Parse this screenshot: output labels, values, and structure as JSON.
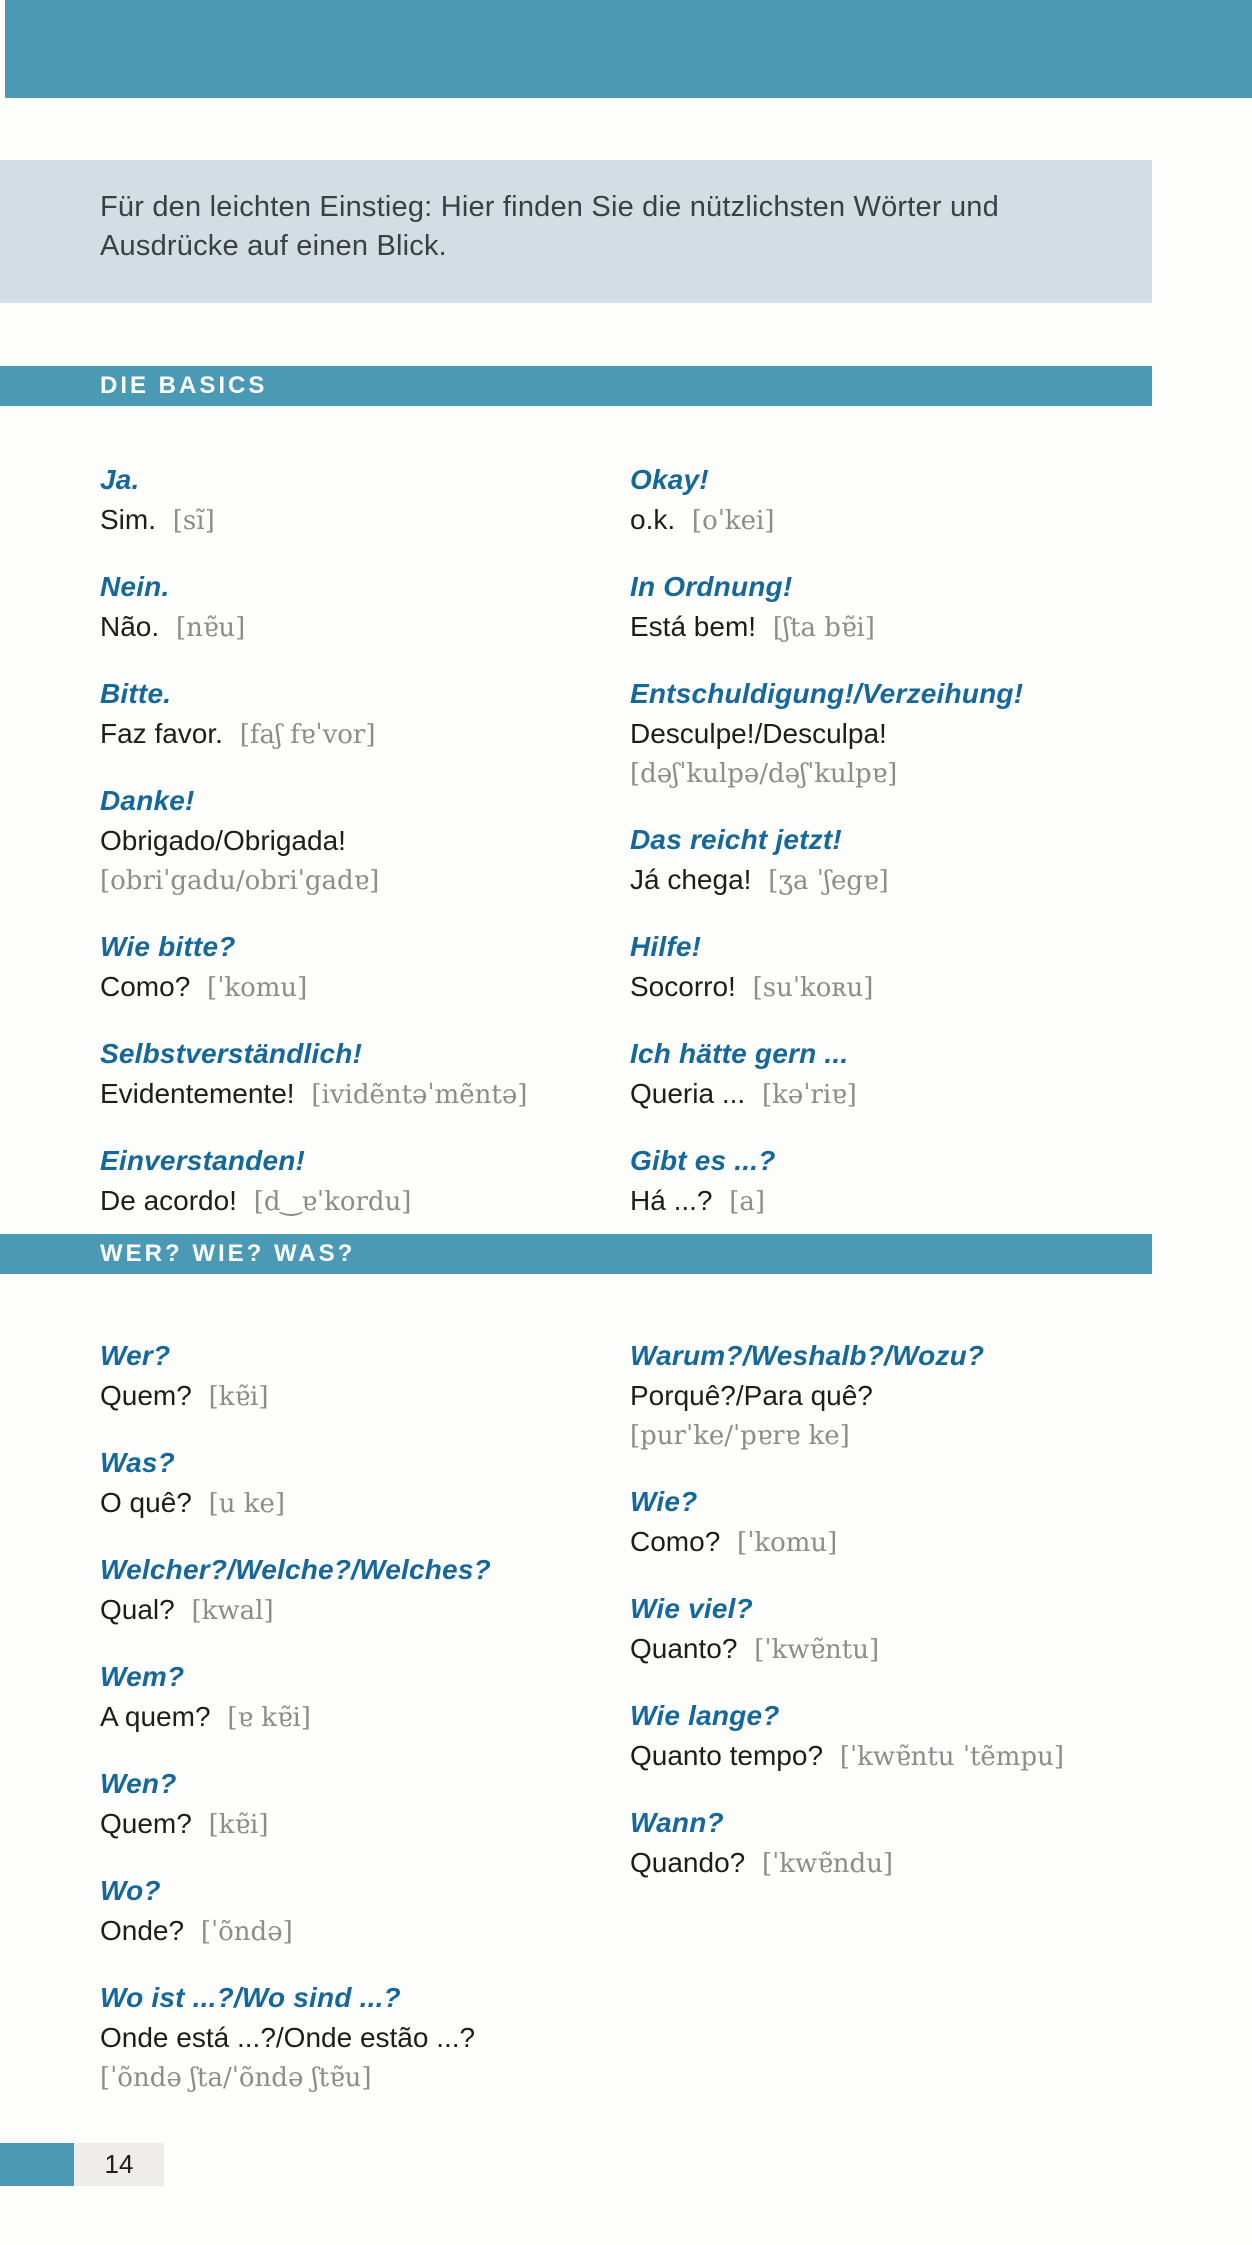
{
  "colors": {
    "teal": "#4A9AB5",
    "intro_bg": "#D3DEE4",
    "headword_blue": "#16689B",
    "ipa_gray": "#8C8C8C"
  },
  "intro": {
    "text": "Für den leichten Einstieg: Hier finden Sie die nützlichsten Wörter und Ausdrücke auf einen Blick."
  },
  "sections": [
    {
      "title": "DIE BASICS",
      "left": [
        {
          "de": "Ja.",
          "pt": "Sim.",
          "ipa": "[sĩ]",
          "ipa_break": false
        },
        {
          "de": "Nein.",
          "pt": "Não.",
          "ipa": "[nɐ̃u]",
          "ipa_break": false
        },
        {
          "de": "Bitte.",
          "pt": "Faz favor.",
          "ipa": "[faʃ fɐˈvor]",
          "ipa_break": false
        },
        {
          "de": "Danke!",
          "pt": "Obrigado/Obrigada!",
          "ipa": "[obriˈgadu/obriˈgadɐ]",
          "ipa_break": true
        },
        {
          "de": "Wie bitte?",
          "pt": "Como?",
          "ipa": "[ˈkomu]",
          "ipa_break": false
        },
        {
          "de": "Selbstverständlich!",
          "pt": "Evidentemente!",
          "ipa": "[ividẽntəˈmẽntə]",
          "ipa_break": false
        },
        {
          "de": "Einverstanden!",
          "pt": "De acordo!",
          "ipa": "[d‿ɐˈkordu]",
          "ipa_break": false
        }
      ],
      "right": [
        {
          "de": "Okay!",
          "pt": "o.k.",
          "ipa": "[oˈkei]",
          "ipa_break": false
        },
        {
          "de": "In Ordnung!",
          "pt": "Está bem!",
          "ipa": "[ʃta bɐ̃i]",
          "ipa_break": false
        },
        {
          "de": "Entschuldigung!/Verzeihung!",
          "pt": "Desculpe!/Desculpa!",
          "ipa": "[dəʃˈkulpə/dəʃˈkulpɐ]",
          "ipa_break": true
        },
        {
          "de": "Das reicht jetzt!",
          "pt": "Já chega!",
          "ipa": "[ʒa ˈʃegɐ]",
          "ipa_break": false
        },
        {
          "de": "Hilfe!",
          "pt": "Socorro!",
          "ipa": "[suˈkoʀu]",
          "ipa_break": false
        },
        {
          "de": "Ich hätte gern ...",
          "pt": "Queria ...",
          "ipa": "[kəˈriɐ]",
          "ipa_break": false
        },
        {
          "de": "Gibt es ...?",
          "pt": "Há ...?",
          "ipa": "[a]",
          "ipa_break": false
        }
      ]
    },
    {
      "title": "WER? WIE? WAS?",
      "left": [
        {
          "de": "Wer?",
          "pt": "Quem?",
          "ipa": "[kɐ̃i]",
          "ipa_break": false
        },
        {
          "de": "Was?",
          "pt": "O quê?",
          "ipa": "[u ke]",
          "ipa_break": false
        },
        {
          "de": "Welcher?/Welche?/Welches?",
          "pt": "Qual?",
          "ipa": "[kwal]",
          "ipa_break": false
        },
        {
          "de": "Wem?",
          "pt": "A quem?",
          "ipa": "[ɐ kɐ̃i]",
          "ipa_break": false
        },
        {
          "de": "Wen?",
          "pt": "Quem?",
          "ipa": "[kɐ̃i]",
          "ipa_break": false
        },
        {
          "de": "Wo?",
          "pt": "Onde?",
          "ipa": "[ˈõndə]",
          "ipa_break": false
        },
        {
          "de": "Wo ist ...?/Wo sind ...?",
          "pt": "Onde está ...?/Onde estão ...?",
          "ipa": "[ˈõndə ʃta/ˈõndə ʃtɐ̃u]",
          "ipa_break": true
        }
      ],
      "right": [
        {
          "de": "Warum?/Weshalb?/Wozu?",
          "pt": "Porquê?/Para quê?",
          "ipa": "[purˈke/ˈpɐrɐ ke]",
          "ipa_break": true
        },
        {
          "de": "Wie?",
          "pt": "Como?",
          "ipa": "[ˈkomu]",
          "ipa_break": false
        },
        {
          "de": "Wie viel?",
          "pt": "Quanto?",
          "ipa": "[ˈkwɐ̃ntu]",
          "ipa_break": false
        },
        {
          "de": "Wie lange?",
          "pt": "Quanto tempo?",
          "ipa": "[ˈkwɐ̃ntu ˈtẽmpu]",
          "ipa_break": false
        },
        {
          "de": "Wann?",
          "pt": "Quando?",
          "ipa": "[ˈkwɐ̃ndu]",
          "ipa_break": false
        }
      ]
    }
  ],
  "footer": {
    "page_number": "14"
  }
}
